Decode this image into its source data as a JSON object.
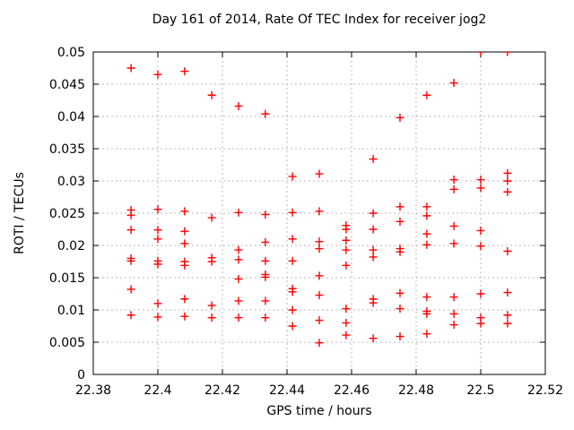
{
  "title": "Day 161 of 2014, Rate Of TEC Index for receiver jog2",
  "colors": {
    "background": "#ffffff",
    "axis": "#000000",
    "grid": "#b8b8b8",
    "marker": "#ff0000"
  },
  "chart_data": {
    "type": "scatter",
    "title": "Day 161 of 2014, Rate Of TEC Index for receiver jog2",
    "xlabel": "GPS time / hours",
    "ylabel": "ROTI / TECUs",
    "xlim": [
      22.38,
      22.52
    ],
    "ylim": [
      0,
      0.05
    ],
    "grid": true,
    "legend": "none",
    "marker": {
      "shape": "plus",
      "color": "#ff0000",
      "size": 9
    },
    "xticks": [
      22.38,
      22.4,
      22.42,
      22.44,
      22.46,
      22.48,
      22.5,
      22.52
    ],
    "xtick_labels": [
      "22.38",
      "22.4",
      "22.42",
      "22.44",
      "22.46",
      "22.48",
      "22.5",
      "22.52"
    ],
    "yticks": [
      0,
      0.005,
      0.01,
      0.015,
      0.02,
      0.025,
      0.03,
      0.035,
      0.04,
      0.045,
      0.05
    ],
    "ytick_labels": [
      "0",
      "0.005",
      "0.01",
      "0.015",
      "0.02",
      "0.025",
      "0.03",
      "0.035",
      "0.04",
      "0.045",
      "0.05"
    ],
    "points": [
      [
        22.3917,
        0.0475
      ],
      [
        22.3917,
        0.0255
      ],
      [
        22.3917,
        0.0247
      ],
      [
        22.3917,
        0.0224
      ],
      [
        22.3917,
        0.018
      ],
      [
        22.3917,
        0.0176
      ],
      [
        22.3917,
        0.0132
      ],
      [
        22.3917,
        0.0092
      ],
      [
        22.4,
        0.0465
      ],
      [
        22.4,
        0.0256
      ],
      [
        22.4,
        0.0224
      ],
      [
        22.4,
        0.021
      ],
      [
        22.4,
        0.0176
      ],
      [
        22.4,
        0.0171
      ],
      [
        22.4,
        0.011
      ],
      [
        22.4,
        0.0089
      ],
      [
        22.4083,
        0.047
      ],
      [
        22.4083,
        0.0253
      ],
      [
        22.4083,
        0.0222
      ],
      [
        22.4083,
        0.0203
      ],
      [
        22.4083,
        0.0175
      ],
      [
        22.4083,
        0.0169
      ],
      [
        22.4083,
        0.0117
      ],
      [
        22.4083,
        0.009
      ],
      [
        22.4167,
        0.0433
      ],
      [
        22.4167,
        0.0243
      ],
      [
        22.4167,
        0.0181
      ],
      [
        22.4167,
        0.0175
      ],
      [
        22.4167,
        0.0107
      ],
      [
        22.4167,
        0.0088
      ],
      [
        22.425,
        0.0416
      ],
      [
        22.425,
        0.0251
      ],
      [
        22.425,
        0.0193
      ],
      [
        22.425,
        0.0178
      ],
      [
        22.425,
        0.0148
      ],
      [
        22.425,
        0.0114
      ],
      [
        22.425,
        0.0088
      ],
      [
        22.4333,
        0.0404
      ],
      [
        22.4333,
        0.0248
      ],
      [
        22.4333,
        0.0205
      ],
      [
        22.4333,
        0.0176
      ],
      [
        22.4333,
        0.0155
      ],
      [
        22.4333,
        0.0151
      ],
      [
        22.4333,
        0.0114
      ],
      [
        22.4333,
        0.0088
      ],
      [
        22.4417,
        0.0307
      ],
      [
        22.4417,
        0.0251
      ],
      [
        22.4417,
        0.021
      ],
      [
        22.4417,
        0.0176
      ],
      [
        22.4417,
        0.0133
      ],
      [
        22.4417,
        0.0128
      ],
      [
        22.4417,
        0.01
      ],
      [
        22.4417,
        0.0075
      ],
      [
        22.45,
        0.0311
      ],
      [
        22.45,
        0.0253
      ],
      [
        22.45,
        0.0206
      ],
      [
        22.45,
        0.0195
      ],
      [
        22.45,
        0.0153
      ],
      [
        22.45,
        0.0123
      ],
      [
        22.45,
        0.0084
      ],
      [
        22.45,
        0.0049
      ],
      [
        22.4583,
        0.0231
      ],
      [
        22.4583,
        0.0225
      ],
      [
        22.4583,
        0.0208
      ],
      [
        22.4583,
        0.0193
      ],
      [
        22.4583,
        0.0169
      ],
      [
        22.4583,
        0.0102
      ],
      [
        22.4583,
        0.008
      ],
      [
        22.4583,
        0.0061
      ],
      [
        22.4667,
        0.0334
      ],
      [
        22.4667,
        0.025
      ],
      [
        22.4667,
        0.0225
      ],
      [
        22.4667,
        0.0193
      ],
      [
        22.4667,
        0.0182
      ],
      [
        22.4667,
        0.0117
      ],
      [
        22.4667,
        0.0111
      ],
      [
        22.4667,
        0.0056
      ],
      [
        22.475,
        0.0398
      ],
      [
        22.475,
        0.026
      ],
      [
        22.475,
        0.0237
      ],
      [
        22.475,
        0.0195
      ],
      [
        22.475,
        0.019
      ],
      [
        22.475,
        0.0126
      ],
      [
        22.475,
        0.0102
      ],
      [
        22.475,
        0.0059
      ],
      [
        22.4833,
        0.0433
      ],
      [
        22.4833,
        0.026
      ],
      [
        22.4833,
        0.0246
      ],
      [
        22.4833,
        0.0218
      ],
      [
        22.4833,
        0.0201
      ],
      [
        22.4833,
        0.012
      ],
      [
        22.4833,
        0.0098
      ],
      [
        22.4833,
        0.0094
      ],
      [
        22.4833,
        0.0063
      ],
      [
        22.4917,
        0.0452
      ],
      [
        22.4917,
        0.0302
      ],
      [
        22.4917,
        0.0287
      ],
      [
        22.4917,
        0.023
      ],
      [
        22.4917,
        0.0203
      ],
      [
        22.4917,
        0.012
      ],
      [
        22.4917,
        0.0094
      ],
      [
        22.4917,
        0.0077
      ],
      [
        22.5,
        0.05
      ],
      [
        22.5,
        0.0302
      ],
      [
        22.5,
        0.0289
      ],
      [
        22.5,
        0.0223
      ],
      [
        22.5,
        0.0199
      ],
      [
        22.5,
        0.0125
      ],
      [
        22.5,
        0.0088
      ],
      [
        22.5,
        0.0079
      ],
      [
        22.5083,
        0.05
      ],
      [
        22.5083,
        0.0312
      ],
      [
        22.5083,
        0.03
      ],
      [
        22.5083,
        0.0283
      ],
      [
        22.5083,
        0.0191
      ],
      [
        22.5083,
        0.0127
      ],
      [
        22.5083,
        0.0092
      ],
      [
        22.5083,
        0.0079
      ]
    ]
  }
}
